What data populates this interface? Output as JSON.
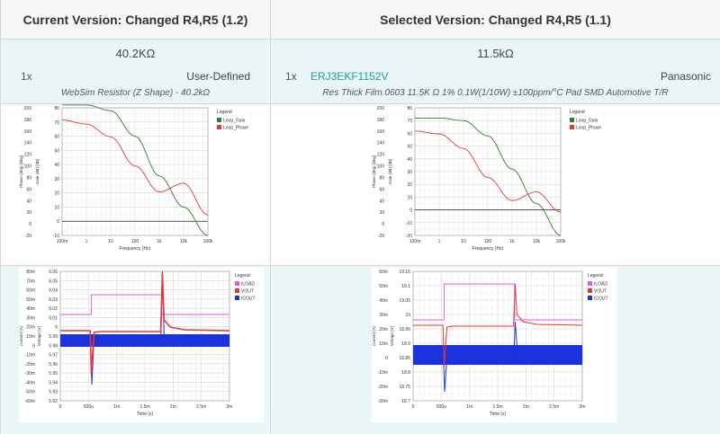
{
  "current": {
    "header": "Current Version: Changed R4,R5 (1.2)",
    "value": "40.2KΩ",
    "qty": "1x",
    "manufacturer": "User-Defined",
    "description": "WebSim Resistor (Z Shape) - 40.2kΩ"
  },
  "selected": {
    "header": "Selected Version: Changed R4,R5 (1.1)",
    "value": "11.5kΩ",
    "qty": "1x",
    "part_number": "ERJ3EKF1152V",
    "manufacturer": "Panasonic",
    "description": "Res Thick Film 0603 11.5K Ω 1% 0.1W(1/10W) ±100ppm/°C Pad SMD Automotive T/R"
  },
  "colors": {
    "gain": "#2e7d2e",
    "phase": "#e53935",
    "iload": "#e05ce0",
    "vout": "#e53935",
    "icout": "#1a33dd",
    "link": "#1a9ba8"
  },
  "bode_legend": {
    "title": "Legend",
    "items": [
      "Loop_Gain",
      "Loop_Phase"
    ]
  },
  "tran_legend": {
    "title": "Legend",
    "items": [
      "ILOAD",
      "VOUT",
      "ICOUT"
    ]
  },
  "bode_axes": {
    "xlabel": "Frequency (Hz)",
    "ylabel_left": "Phase (deg) [deg]",
    "ylabel_right": "Gain (dB) [dB]",
    "xticks": [
      "100m",
      "1",
      "10",
      "100",
      "1k",
      "10k",
      "100k"
    ],
    "phase_ticks": [
      "200",
      "180",
      "160",
      "140",
      "120",
      "100",
      "80",
      "60",
      "40",
      "20",
      "0",
      "-20"
    ],
    "gain_ticks_left": [
      "80",
      "70",
      "60",
      "50",
      "40",
      "30",
      "20",
      "10",
      "0",
      "-10"
    ],
    "gain_ticks_right": [
      "80",
      "70",
      "60",
      "50",
      "40",
      "30",
      "20",
      "10",
      "0",
      "-10",
      "-20"
    ]
  },
  "tran_axes": {
    "xlabel": "Time (s)",
    "ylabel_left": "Current (A)",
    "ylabel_right": "Voltage (V)",
    "xticks": [
      "0",
      "500u",
      "1m",
      "1.5m",
      "2m",
      "2.5m",
      "3m"
    ],
    "current_ticks": [
      "80m",
      "70m",
      "60m",
      "50m",
      "40m",
      "30m",
      "20m",
      "10m",
      "0",
      "-10m",
      "-20m",
      "-30m",
      "-40m",
      "-50m",
      "-60m"
    ],
    "current_ticks_right": [
      "60m",
      "50m",
      "40m",
      "30m",
      "20m",
      "10m",
      "0",
      "-10m",
      "-20m",
      "-30m"
    ],
    "voltage_ticks_left": [
      "6.06",
      "6.05",
      "6.04",
      "6.03",
      "6.02",
      "6.01",
      "6",
      "5.99",
      "5.98",
      "5.97",
      "5.96",
      "5.95",
      "5.94",
      "5.93",
      "5.92"
    ],
    "voltage_ticks_right": [
      "19.15",
      "19.1",
      "19.05",
      "19",
      "18.95",
      "18.9",
      "18.85",
      "18.8",
      "18.75",
      "18.7"
    ]
  },
  "chart_data": [
    {
      "type": "line",
      "xlabel": "Frequency (Hz)",
      "ylabel": "Gain (dB) [dB]",
      "x": [
        0.1,
        1,
        10,
        100,
        1000,
        10000,
        100000
      ],
      "series": [
        {
          "name": "Loop_Gain",
          "values": [
            82,
            82,
            78,
            60,
            32,
            10,
            -10
          ]
        },
        {
          "name": "Loop_Phase",
          "values": [
            179,
            172,
            150,
            100,
            55,
            70,
            15
          ]
        }
      ]
    },
    {
      "type": "line",
      "xlabel": "Frequency (Hz)",
      "ylabel": "Gain (dB) [dB]",
      "x": [
        0.1,
        1,
        10,
        100,
        1000,
        10000,
        100000
      ],
      "series": [
        {
          "name": "Loop_Gain",
          "values": [
            72,
            72,
            70,
            58,
            32,
            5,
            -20
          ]
        },
        {
          "name": "Loop_Phase",
          "values": [
            160,
            155,
            130,
            80,
            40,
            55,
            20
          ]
        }
      ]
    }
  ]
}
